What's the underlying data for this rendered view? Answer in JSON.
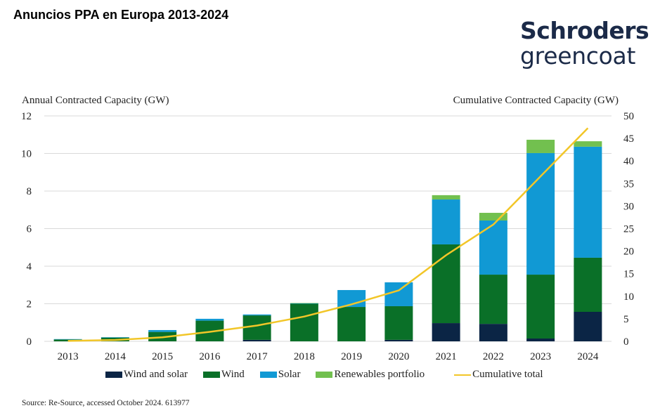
{
  "page": {
    "title": "Anuncios PPA en Europa 2013-2024",
    "logo": {
      "line1": "Schroders",
      "line2": "greencoat"
    },
    "source": "Source: Re-Source, accessed October 2024. 613977"
  },
  "chart_data": {
    "type": "bar",
    "stacked": true,
    "title": "Anuncios PPA en Europa 2013-2024",
    "ylabel": "Annual Contracted Capacity (GW)",
    "y2label": "Cumulative Contracted Capacity (GW)",
    "ylim": [
      0,
      12
    ],
    "y2lim": [
      0,
      50
    ],
    "yticks": [
      "0",
      "2",
      "4",
      "6",
      "8",
      "10",
      "12"
    ],
    "y2ticks": [
      "0",
      "5",
      "10",
      "15",
      "20",
      "25",
      "30",
      "35",
      "40",
      "45",
      "50"
    ],
    "grid": true,
    "legend_position": "bottom",
    "categories": [
      "2013",
      "2014",
      "2015",
      "2016",
      "2017",
      "2018",
      "2019",
      "2020",
      "2021",
      "2022",
      "2023",
      "2024"
    ],
    "series": [
      {
        "name": "Wind and solar",
        "color": "#0b2545",
        "values": [
          0,
          0,
          0,
          0,
          0.08,
          0,
          0,
          0.08,
          0.97,
          0.93,
          0.15,
          1.57
        ]
      },
      {
        "name": "Wind",
        "color": "#0a7028",
        "values": [
          0.1,
          0.2,
          0.5,
          1.1,
          1.3,
          2.0,
          1.83,
          1.79,
          4.19,
          2.62,
          3.4,
          2.88
        ]
      },
      {
        "name": "Solar",
        "color": "#1199d4",
        "values": [
          0.02,
          0.02,
          0.1,
          0.1,
          0.05,
          0.02,
          0.9,
          1.27,
          2.39,
          2.88,
          6.47,
          5.91
        ]
      },
      {
        "name": "Renewables portfolio",
        "color": "#72c04f",
        "values": [
          0,
          0,
          0,
          0,
          0,
          0.02,
          0,
          0,
          0.23,
          0.41,
          0.71,
          0.29
        ]
      }
    ],
    "line_series": {
      "name": "Cumulative total",
      "color": "#f2c628",
      "axis": "right",
      "values": [
        0.1,
        0.3,
        0.9,
        2.1,
        3.5,
        5.5,
        8.2,
        11.3,
        19.1,
        25.9,
        36.6,
        47.3
      ]
    }
  }
}
